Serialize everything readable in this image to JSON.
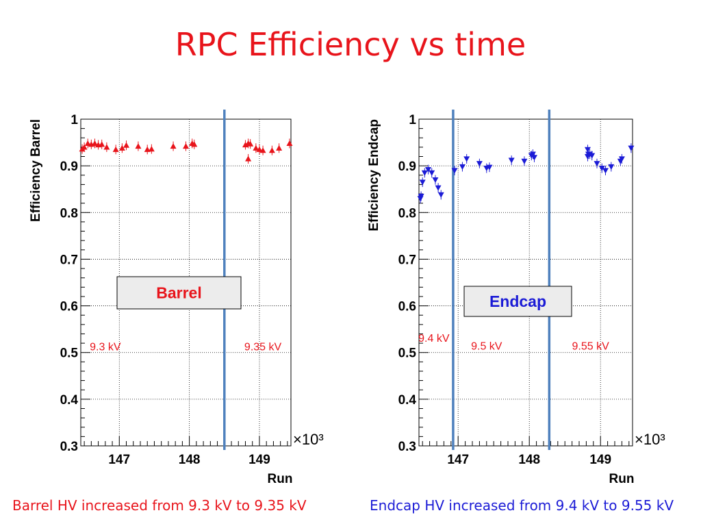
{
  "slide": {
    "title": "RPC Efficiency vs time",
    "caption_left": "Barrel HV increased from 9.3 kV to 9.35 kV",
    "caption_right": "Endcap HV increased from 9.4 kV to 9.55 kV"
  },
  "chart_data": [
    {
      "type": "scatter",
      "ylabel": "Efficiency Barrel",
      "xlabel": "Run",
      "x_multiplier": "×10³",
      "xlim": [
        146.45,
        149.45
      ],
      "ylim": [
        0.3,
        1.0
      ],
      "xticks": [
        147,
        148,
        149
      ],
      "yticks": [
        0.3,
        0.4,
        0.5,
        0.6,
        0.7,
        0.8,
        0.9,
        1
      ],
      "grid": true,
      "marker": "triangle-up",
      "color": "#e8141b",
      "legend_box": "Barrel",
      "legend_color": "#e8141b",
      "vlines": [
        148.5
      ],
      "annotations": [
        {
          "text": "9.3 kV",
          "x": 146.8,
          "y": 0.505
        },
        {
          "text": "9.35 kV",
          "x": 149.05,
          "y": 0.505
        }
      ],
      "points": [
        [
          146.47,
          0.936
        ],
        [
          146.5,
          0.94
        ],
        [
          146.55,
          0.948
        ],
        [
          146.6,
          0.946
        ],
        [
          146.65,
          0.948
        ],
        [
          146.7,
          0.945
        ],
        [
          146.75,
          0.946
        ],
        [
          146.82,
          0.94
        ],
        [
          146.95,
          0.935
        ],
        [
          147.04,
          0.938
        ],
        [
          147.1,
          0.944
        ],
        [
          147.27,
          0.942
        ],
        [
          147.4,
          0.935
        ],
        [
          147.46,
          0.936
        ],
        [
          147.77,
          0.942
        ],
        [
          147.95,
          0.942
        ],
        [
          148.04,
          0.948
        ],
        [
          148.07,
          0.946
        ],
        [
          148.8,
          0.945
        ],
        [
          148.84,
          0.948
        ],
        [
          148.87,
          0.947
        ],
        [
          148.84,
          0.915
        ],
        [
          148.95,
          0.938
        ],
        [
          149.0,
          0.935
        ],
        [
          149.05,
          0.933
        ],
        [
          149.18,
          0.933
        ],
        [
          149.28,
          0.938
        ],
        [
          149.43,
          0.948
        ]
      ]
    },
    {
      "type": "scatter",
      "ylabel": "Efficiency Endcap",
      "xlabel": "Run",
      "x_multiplier": "×10³",
      "xlim": [
        146.45,
        149.45
      ],
      "ylim": [
        0.3,
        1.0
      ],
      "xticks": [
        147,
        148,
        149
      ],
      "yticks": [
        0.3,
        0.4,
        0.5,
        0.6,
        0.7,
        0.8,
        0.9,
        1
      ],
      "grid": true,
      "marker": "triangle-down",
      "color": "#1b1bd6",
      "legend_box": "Endcap",
      "legend_color": "#1b1bd6",
      "vlines": [
        146.93,
        148.28
      ],
      "annotations": [
        {
          "text": "9.4 kV",
          "x": 146.66,
          "y": 0.523
        },
        {
          "text": "9.5 kV",
          "x": 147.4,
          "y": 0.506
        },
        {
          "text": "9.55 kV",
          "x": 148.86,
          "y": 0.506
        }
      ],
      "points": [
        [
          146.47,
          0.83
        ],
        [
          146.48,
          0.835
        ],
        [
          146.5,
          0.865
        ],
        [
          146.53,
          0.885
        ],
        [
          146.58,
          0.892
        ],
        [
          146.63,
          0.885
        ],
        [
          146.68,
          0.87
        ],
        [
          146.72,
          0.853
        ],
        [
          146.76,
          0.838
        ],
        [
          146.95,
          0.89
        ],
        [
          147.06,
          0.898
        ],
        [
          147.12,
          0.915
        ],
        [
          147.3,
          0.905
        ],
        [
          147.4,
          0.895
        ],
        [
          147.44,
          0.897
        ],
        [
          147.75,
          0.912
        ],
        [
          147.93,
          0.91
        ],
        [
          148.03,
          0.922
        ],
        [
          148.07,
          0.918
        ],
        [
          148.05,
          0.925
        ],
        [
          148.82,
          0.935
        ],
        [
          148.83,
          0.925
        ],
        [
          148.85,
          0.925
        ],
        [
          148.82,
          0.92
        ],
        [
          148.88,
          0.922
        ],
        [
          148.95,
          0.905
        ],
        [
          149.02,
          0.895
        ],
        [
          149.07,
          0.89
        ],
        [
          149.15,
          0.898
        ],
        [
          149.3,
          0.915
        ],
        [
          149.28,
          0.91
        ],
        [
          149.43,
          0.938
        ]
      ]
    }
  ]
}
